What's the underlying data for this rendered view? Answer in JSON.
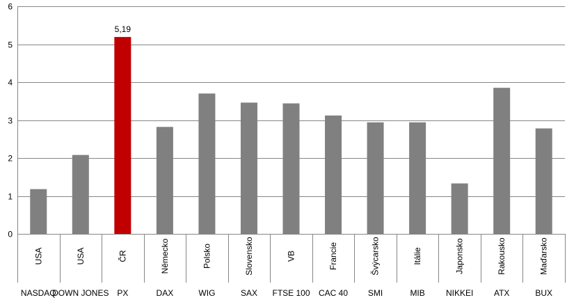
{
  "chart_data": {
    "type": "bar",
    "categories": [
      {
        "country": "USA",
        "index": "NASDAQ"
      },
      {
        "country": "USA",
        "index": "DOWN JONES"
      },
      {
        "country": "ČR",
        "index": "PX"
      },
      {
        "country": "Německo",
        "index": "DAX"
      },
      {
        "country": "Polsko",
        "index": "WIG"
      },
      {
        "country": "Slovensko",
        "index": "SAX"
      },
      {
        "country": "VB",
        "index": "FTSE 100"
      },
      {
        "country": "Francie",
        "index": "CAC 40"
      },
      {
        "country": "Švýcarsko",
        "index": "SMI"
      },
      {
        "country": "Itálie",
        "index": "MIB"
      },
      {
        "country": "Japonsko",
        "index": "NIKKEI"
      },
      {
        "country": "Rakousko",
        "index": "ATX"
      },
      {
        "country": "Maďarsko",
        "index": "BUX"
      }
    ],
    "values": [
      1.18,
      2.08,
      5.19,
      2.82,
      3.7,
      3.46,
      3.44,
      3.12,
      2.94,
      2.94,
      1.33,
      3.85,
      2.78
    ],
    "data_labels": [
      "",
      "",
      "5,19",
      "",
      "",
      "",
      "",
      "",
      "",
      "",
      "",
      "",
      ""
    ],
    "highlight_index": 2,
    "colors": {
      "bar": "#808080",
      "highlight": "#c00000",
      "grid": "#868686",
      "axis": "#868686"
    },
    "ylim": [
      0,
      6
    ],
    "yticks": [
      "0",
      "1",
      "2",
      "3",
      "4",
      "5",
      "6"
    ],
    "grid": true,
    "title": "",
    "xlabel": "",
    "ylabel": ""
  }
}
